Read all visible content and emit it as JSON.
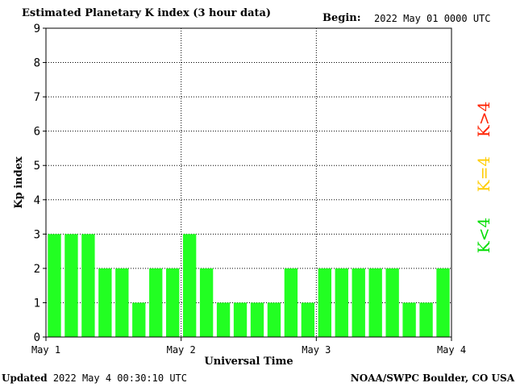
{
  "header": {
    "title": "Estimated Planetary K index (3 hour data)",
    "begin_label": "Begin:",
    "begin_value": "2022 May 01 0000 UTC"
  },
  "footer": {
    "updated_label": "Updated",
    "updated_value": "2022 May  4 00:30:10 UTC",
    "source": "NOAA/SWPC Boulder, CO USA"
  },
  "legend": [
    {
      "label": "K<4",
      "color": "#00dd00"
    },
    {
      "label": "K=4",
      "color": "#ffcc00"
    },
    {
      "label": "K>4",
      "color": "#ff2200"
    }
  ],
  "chart_data": {
    "type": "bar",
    "title": "Estimated Planetary K index (3 hour data)",
    "xlabel": "Universal Time",
    "ylabel": "Kp index",
    "ylim": [
      0,
      9
    ],
    "yticks": [
      0,
      1,
      2,
      3,
      4,
      5,
      6,
      7,
      8,
      9
    ],
    "xticks": [
      "May 1",
      "May 2",
      "May 3",
      "May 4"
    ],
    "grid": true,
    "bar_color": "#22ff22",
    "values": [
      3,
      3,
      3,
      2,
      2,
      1,
      2,
      2,
      3,
      2,
      1,
      1,
      1,
      1,
      2,
      1,
      2,
      2,
      2,
      2,
      2,
      1,
      1,
      2
    ]
  }
}
